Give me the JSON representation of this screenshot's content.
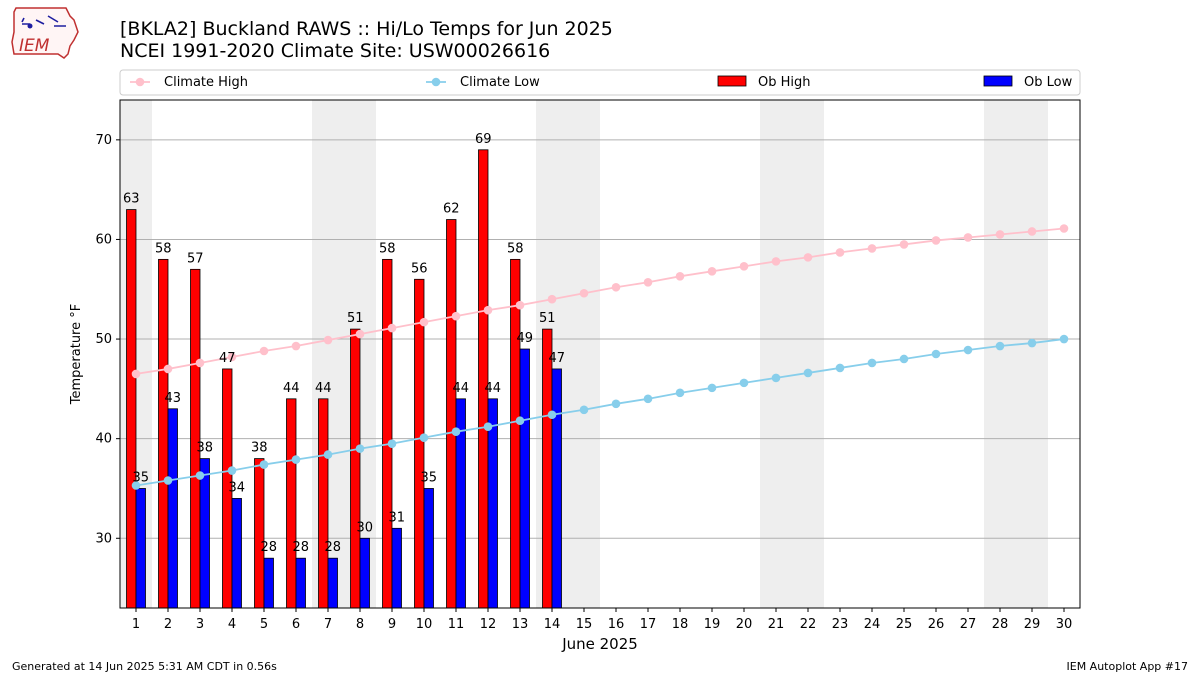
{
  "header": {
    "title_line1": "[BKLA2] Buckland RAWS :: Hi/Lo Temps for Jun 2025",
    "title_line2": "NCEI 1991-2020 Climate Site: USW00026616"
  },
  "logo": {
    "text": "IEM",
    "icon": "iowa-state-outline-logo"
  },
  "footer": {
    "left": "Generated at 14 Jun 2025 5:31 AM CDT in 0.56s",
    "right": "IEM Autoplot App #17"
  },
  "colors": {
    "climate_high": "#ffc0cb",
    "climate_low": "#87ceeb",
    "ob_high": "#ff0000",
    "ob_low": "#0000ff",
    "weekend_shade": "#eeeeee",
    "grid": "#b0b0b0"
  },
  "chart_data": {
    "type": "bar",
    "xlabel": "June 2025",
    "ylabel": "Temperature °F",
    "ylim": [
      23,
      74
    ],
    "yticks": [
      30,
      40,
      50,
      60,
      70
    ],
    "grid": "horizontal",
    "legend_position": "top",
    "days": [
      1,
      2,
      3,
      4,
      5,
      6,
      7,
      8,
      9,
      10,
      11,
      12,
      13,
      14,
      15,
      16,
      17,
      18,
      19,
      20,
      21,
      22,
      23,
      24,
      25,
      26,
      27,
      28,
      29,
      30
    ],
    "shaded_days": [
      1,
      7,
      8,
      14,
      15,
      21,
      22,
      28,
      29
    ],
    "series": [
      {
        "name": "Climate High",
        "kind": "line",
        "values": [
          46.5,
          47.0,
          47.6,
          48.2,
          48.8,
          49.3,
          49.9,
          50.5,
          51.1,
          51.7,
          52.3,
          52.9,
          53.4,
          54.0,
          54.6,
          55.2,
          55.7,
          56.3,
          56.8,
          57.3,
          57.8,
          58.2,
          58.7,
          59.1,
          59.5,
          59.9,
          60.2,
          60.5,
          60.8,
          61.1
        ]
      },
      {
        "name": "Climate Low",
        "kind": "line",
        "values": [
          35.3,
          35.8,
          36.3,
          36.8,
          37.4,
          37.9,
          38.4,
          39.0,
          39.5,
          40.1,
          40.7,
          41.2,
          41.8,
          42.4,
          42.9,
          43.5,
          44.0,
          44.6,
          45.1,
          45.6,
          46.1,
          46.6,
          47.1,
          47.6,
          48.0,
          48.5,
          48.9,
          49.3,
          49.6,
          50.0
        ]
      },
      {
        "name": "Ob High",
        "kind": "bar",
        "values": [
          63,
          58,
          57,
          47,
          38,
          44,
          44,
          51,
          58,
          56,
          62,
          69,
          58,
          51
        ]
      },
      {
        "name": "Ob Low",
        "kind": "bar",
        "values": [
          35,
          43,
          38,
          34,
          28,
          28,
          28,
          30,
          31,
          35,
          44,
          44,
          49,
          47
        ]
      }
    ]
  }
}
